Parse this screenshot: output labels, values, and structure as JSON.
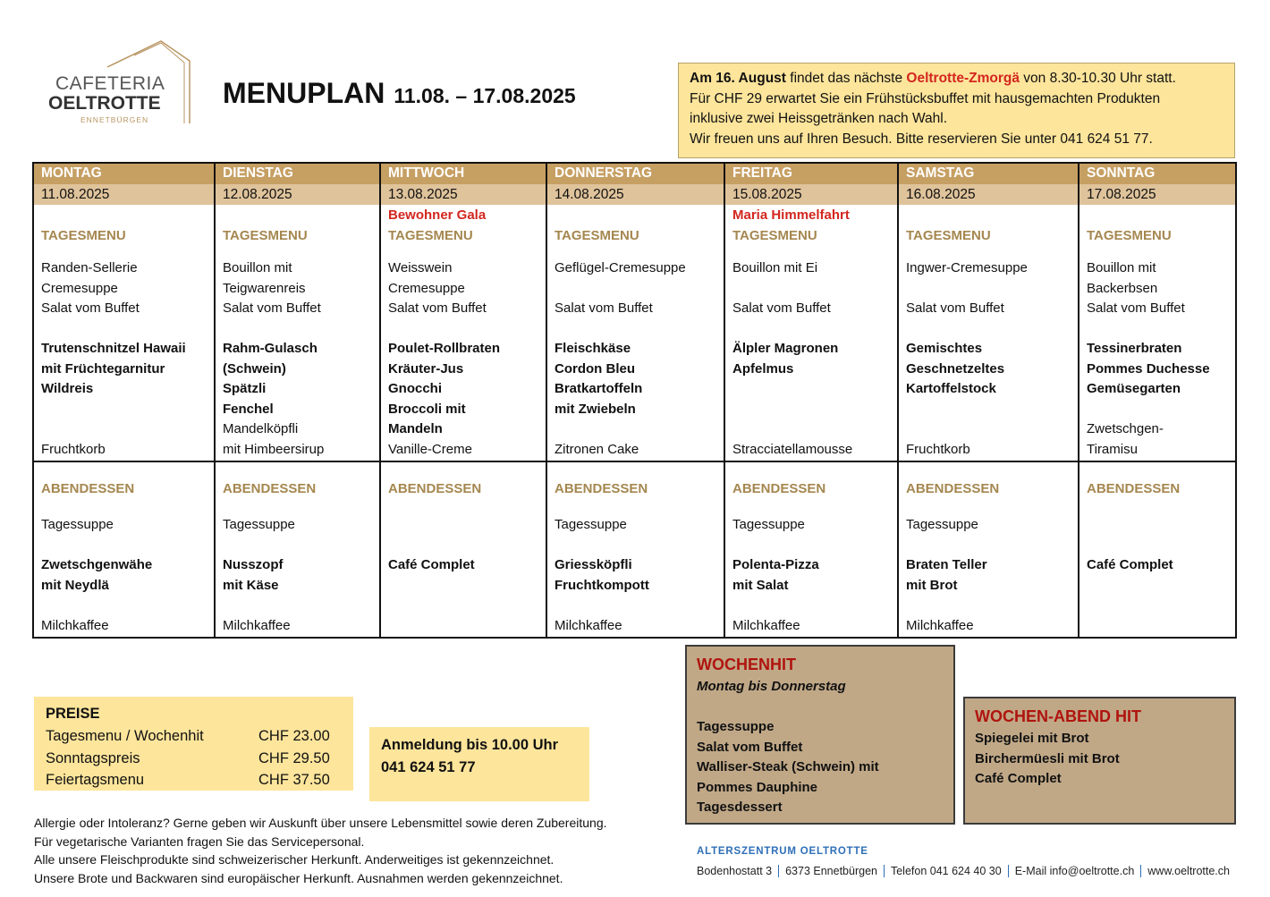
{
  "logo": {
    "line1": "CAFETERIA",
    "line2": "OELTROTTE",
    "line3": "ENNETBÜRGEN"
  },
  "title": {
    "main": "MENUPLAN",
    "dates": "11.08. – 17.08.2025"
  },
  "notice": {
    "lines": [
      [
        {
          "text": "Am 16. August",
          "style": "bold"
        },
        {
          "text": "findet das nächste",
          "style": "normal"
        },
        {
          "text": "Oeltrotte-Zmorgä",
          "style": "red"
        },
        {
          "text": "von 8.30-10.30 Uhr statt.",
          "style": "normal"
        }
      ],
      [
        {
          "text": "Für CHF 29 erwartet Sie ein Frühstücksbuffet mit hausgemachten Produkten",
          "style": "normal"
        }
      ],
      [
        {
          "text": "inklusive zwei Heissgetränken nach Wahl.",
          "style": "normal"
        }
      ],
      [
        {
          "text": "Wir freuen uns auf Ihren Besuch. Bitte reservieren Sie unter 041 624 51 77.",
          "style": "normal"
        }
      ]
    ]
  },
  "days": [
    {
      "name": "MONTAG",
      "date": "11.08.2025",
      "lunch_label": "TAGESMENU",
      "soup": [
        "Randen-Sellerie",
        "Cremesuppe"
      ],
      "salad": "Salat vom Buffet",
      "main": [
        "Trutenschnitzel Hawaii",
        "mit Früchtegarnitur",
        "Wildreis"
      ],
      "dessert": [
        "Fruchtkorb"
      ],
      "dinner_label": "ABENDESSEN",
      "dinner_soup": "Tagessuppe",
      "dinner_main": [
        "Zwetschgenwähe",
        "mit Neydlä"
      ],
      "dinner_drink": "Milchkaffee"
    },
    {
      "name": "DIENSTAG",
      "date": "12.08.2025",
      "lunch_label": "TAGESMENU",
      "soup": [
        "Bouillon mit",
        "Teigwarenreis"
      ],
      "salad": "Salat vom Buffet",
      "main": [
        "Rahm-Gulasch",
        "(Schwein)",
        "Spätzli",
        "Fenchel"
      ],
      "dessert": [
        "Mandelköpfli",
        "mit Himbeersirup"
      ],
      "dinner_label": "ABENDESSEN",
      "dinner_soup": "Tagessuppe",
      "dinner_main": [
        "Nusszopf",
        "mit Käse"
      ],
      "dinner_drink": "Milchkaffee"
    },
    {
      "name": "MITTWOCH",
      "date": "13.08.2025",
      "special": "Bewohner Gala",
      "lunch_label": "TAGESMENU",
      "soup": [
        "Weisswein",
        "Cremesuppe"
      ],
      "salad": "Salat vom Buffet",
      "main": [
        "Poulet-Rollbraten",
        "Kräuter-Jus",
        "Gnocchi",
        "Broccoli mit",
        "Mandeln"
      ],
      "dessert": [
        "Vanille-Creme"
      ],
      "dinner_label": "ABENDESSEN",
      "dinner_main": [
        "Café Complet"
      ]
    },
    {
      "name": "DONNERSTAG",
      "date": "14.08.2025",
      "lunch_label": "TAGESMENU",
      "soup": [
        "Geflügel-Cremesuppe"
      ],
      "salad": "Salat vom Buffet",
      "main": [
        "Fleischkäse",
        "Cordon Bleu",
        "Bratkartoffeln",
        "mit Zwiebeln"
      ],
      "dessert": [
        "Zitronen Cake"
      ],
      "dinner_label": "ABENDESSEN",
      "dinner_soup": "Tagessuppe",
      "dinner_main": [
        "Griessköpfli",
        "Fruchtkompott"
      ],
      "dinner_drink": "Milchkaffee"
    },
    {
      "name": "FREITAG",
      "date": "15.08.2025",
      "special": "Maria Himmelfahrt",
      "lunch_label": "TAGESMENU",
      "soup": [
        "Bouillon mit Ei"
      ],
      "salad": "Salat vom Buffet",
      "main": [
        "Älpler Magronen",
        "Apfelmus"
      ],
      "dessert": [
        "Stracciatellamousse"
      ],
      "dinner_label": "ABENDESSEN",
      "dinner_soup": "Tagessuppe",
      "dinner_main": [
        "Polenta-Pizza",
        "mit Salat"
      ],
      "dinner_drink": "Milchkaffee"
    },
    {
      "name": "SAMSTAG",
      "date": "16.08.2025",
      "lunch_label": "TAGESMENU",
      "soup": [
        "Ingwer-Cremesuppe"
      ],
      "salad": "Salat vom Buffet",
      "main": [
        "Gemischtes",
        "Geschnetzeltes",
        "Kartoffelstock"
      ],
      "dessert": [
        "Fruchtkorb"
      ],
      "dinner_label": "ABENDESSEN",
      "dinner_soup": "Tagessuppe",
      "dinner_main": [
        "Braten Teller",
        "mit Brot"
      ],
      "dinner_drink": "Milchkaffee"
    },
    {
      "name": "SONNTAG",
      "date": "17.08.2025",
      "lunch_label": "TAGESMENU",
      "soup": [
        "Bouillon mit",
        "Backerbsen"
      ],
      "salad": "Salat vom Buffet",
      "main": [
        "Tessinerbraten",
        "Pommes Duchesse",
        "Gemüsegarten"
      ],
      "dessert": [
        "Zwetschgen-",
        "Tiramisu"
      ],
      "dinner_label": "ABENDESSEN",
      "dinner_main": [
        "Café Complet"
      ]
    }
  ],
  "prices": {
    "title": "PREISE",
    "rows": [
      {
        "label": "Tagesmenu / Wochenhit",
        "price": "CHF 23.00"
      },
      {
        "label": "Sonntagspreis",
        "price": "CHF 29.50"
      },
      {
        "label": "Feiertagsmenu",
        "price": "CHF 37.50"
      }
    ]
  },
  "registration": {
    "lines": [
      "Anmeldung bis 10.00 Uhr",
      "041 624 51 77"
    ]
  },
  "weekly_hit": {
    "title": "WOCHENHIT",
    "subtitle": "Montag bis Donnerstag",
    "lines": [
      "Tagessuppe",
      "Salat vom Buffet",
      "Walliser-Steak (Schwein) mit",
      "Pommes Dauphine",
      "Tagesdessert"
    ]
  },
  "evening_hit": {
    "title": "WOCHEN-ABEND HIT",
    "lines": [
      "Spiegelei mit Brot",
      "Birchermüesli mit Brot",
      "Café Complet"
    ]
  },
  "notes": [
    "Allergie oder Intoleranz?  Gerne geben wir Auskunft über unsere Lebensmittel sowie deren Zubereitung.",
    "Für vegetarische Varianten fragen Sie das Servicepersonal.",
    "Alle unsere Fleischprodukte sind schweizerischer Herkunft. Anderweitiges ist gekennzeichnet.",
    "Unsere Brote und Backwaren sind europäischer Herkunft. Ausnahmen werden gekennzeichnet."
  ],
  "footer": {
    "org": "ALTERSZENTRUM OELTROTTE",
    "items": [
      "Bodenhostatt 3",
      "6373 Ennetbürgen",
      "Telefon 041 624 40 30",
      "E-Mail info@oeltrotte.ch",
      "www.oeltrotte.ch"
    ]
  }
}
